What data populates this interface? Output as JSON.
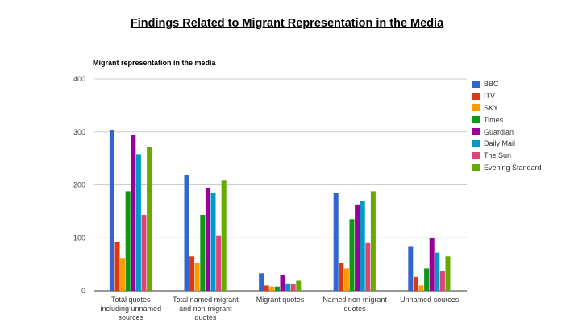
{
  "page_title": "Findings Related to Migrant Representation in the Media",
  "chart_data": {
    "type": "bar",
    "title": "Migrant representation in the media",
    "xlabel": "",
    "ylabel": "",
    "ylim": [
      0,
      400
    ],
    "yticks": [
      "0",
      "100",
      "200",
      "300",
      "400"
    ],
    "grid": true,
    "legend_position": "right",
    "categories": [
      [
        "Total quotes",
        "including unnamed",
        "sources"
      ],
      [
        "Total named migrant",
        "and non-migrant",
        "quotes"
      ],
      [
        "Migrant quotes"
      ],
      [
        "Named non-migrant",
        "quotes"
      ],
      [
        "Unnamed sources"
      ]
    ],
    "series": [
      {
        "name": "BBC",
        "color": "#3366cc",
        "values": [
          303,
          219,
          33,
          185,
          83
        ]
      },
      {
        "name": "ITV",
        "color": "#dc3912",
        "values": [
          92,
          65,
          10,
          53,
          26
        ]
      },
      {
        "name": "SKY",
        "color": "#ff9900",
        "values": [
          62,
          52,
          8,
          42,
          10
        ]
      },
      {
        "name": "Times",
        "color": "#109618",
        "values": [
          188,
          143,
          8,
          135,
          42
        ]
      },
      {
        "name": "Guardian",
        "color": "#990099",
        "values": [
          294,
          194,
          30,
          163,
          100
        ]
      },
      {
        "name": "Daily Mail",
        "color": "#0099c6",
        "values": [
          258,
          185,
          14,
          170,
          72
        ]
      },
      {
        "name": "The Sun",
        "color": "#dd4477",
        "values": [
          143,
          104,
          13,
          90,
          38
        ]
      },
      {
        "name": "Evening Standard",
        "color": "#66aa00",
        "values": [
          272,
          208,
          19,
          188,
          65
        ]
      }
    ]
  }
}
